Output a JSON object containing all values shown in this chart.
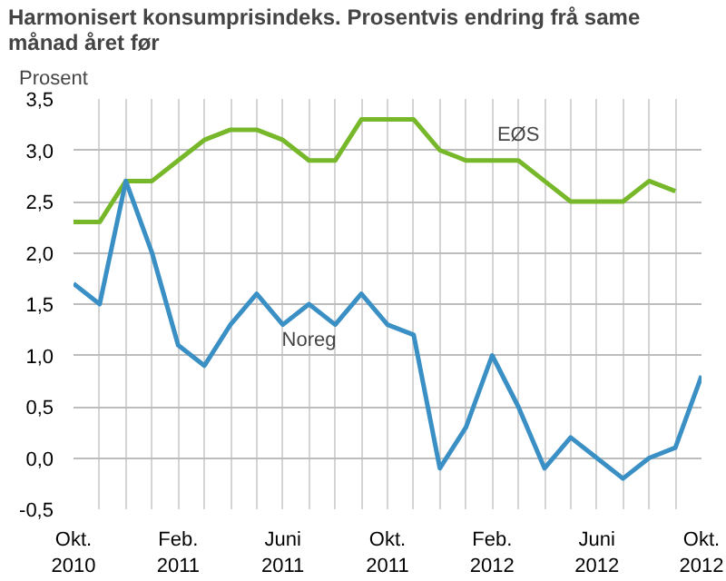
{
  "chart_data": {
    "type": "line",
    "title": "Harmonisert konsumprisindeks. Prosentvis endring frå same månad året før",
    "ylabel": "Prosent",
    "x": [
      "2010-10",
      "2010-11",
      "2010-12",
      "2011-01",
      "2011-02",
      "2011-03",
      "2011-04",
      "2011-05",
      "2011-06",
      "2011-07",
      "2011-08",
      "2011-09",
      "2011-10",
      "2011-11",
      "2011-12",
      "2012-01",
      "2012-02",
      "2012-03",
      "2012-04",
      "2012-05",
      "2012-06",
      "2012-07",
      "2012-08",
      "2012-09",
      "2012-10"
    ],
    "series": [
      {
        "name": "EØS",
        "color": "#76b82a",
        "values": [
          2.3,
          2.3,
          2.7,
          2.7,
          2.9,
          3.1,
          3.2,
          3.2,
          3.1,
          2.9,
          2.9,
          3.3,
          3.3,
          3.3,
          3.0,
          2.9,
          2.9,
          2.9,
          2.7,
          2.5,
          2.5,
          2.5,
          2.7,
          2.6,
          null
        ]
      },
      {
        "name": "Noreg",
        "color": "#3a8fc4",
        "values": [
          1.7,
          1.5,
          2.7,
          2.0,
          1.1,
          0.9,
          1.3,
          1.6,
          1.3,
          1.5,
          1.3,
          1.6,
          1.3,
          1.2,
          -0.1,
          0.3,
          1.0,
          0.5,
          -0.1,
          0.2,
          0.0,
          -0.2,
          0.0,
          0.1,
          0.8
        ]
      }
    ],
    "xlim": [
      "2010-10",
      "2012-10"
    ],
    "xticks": [
      {
        "value": "2010-10",
        "label": "Okt.\n2010"
      },
      {
        "value": "2010-11",
        "label": null
      },
      {
        "value": "2010-12",
        "label": null
      },
      {
        "value": "2011-01",
        "label": null
      },
      {
        "value": "2011-02",
        "label": "Feb.\n2011"
      },
      {
        "value": "2011-03",
        "label": null
      },
      {
        "value": "2011-04",
        "label": null
      },
      {
        "value": "2011-05",
        "label": null
      },
      {
        "value": "2011-06",
        "label": "Juni\n2011"
      },
      {
        "value": "2011-07",
        "label": null
      },
      {
        "value": "2011-08",
        "label": null
      },
      {
        "value": "2011-09",
        "label": null
      },
      {
        "value": "2011-10",
        "label": "Okt.\n2011"
      },
      {
        "value": "2011-11",
        "label": null
      },
      {
        "value": "2011-12",
        "label": null
      },
      {
        "value": "2012-01",
        "label": null
      },
      {
        "value": "2012-02",
        "label": "Feb.\n2012"
      },
      {
        "value": "2012-03",
        "label": null
      },
      {
        "value": "2012-04",
        "label": null
      },
      {
        "value": "2012-05",
        "label": null
      },
      {
        "value": "2012-06",
        "label": "Juni\n2012"
      },
      {
        "value": "2012-07",
        "label": null
      },
      {
        "value": "2012-08",
        "label": null
      },
      {
        "value": "2012-09",
        "label": null
      },
      {
        "value": "2012-10",
        "label": "Okt.\n2012"
      }
    ],
    "ylim": [
      -0.5,
      3.5
    ],
    "yticks": [
      {
        "value": -0.5,
        "label": "-0,5"
      },
      {
        "value": 0,
        "label": "0,0"
      },
      {
        "value": 0.5,
        "label": "0,5"
      },
      {
        "value": 1,
        "label": "1,0"
      },
      {
        "value": 1.5,
        "label": "1,5"
      },
      {
        "value": 2,
        "label": "2,0"
      },
      {
        "value": 2.5,
        "label": "2,5"
      },
      {
        "value": 3,
        "label": "3,0"
      },
      {
        "value": 3.5,
        "label": "3,5"
      }
    ],
    "grid": true,
    "legend": false,
    "marker": "none",
    "line_style": "solid"
  }
}
